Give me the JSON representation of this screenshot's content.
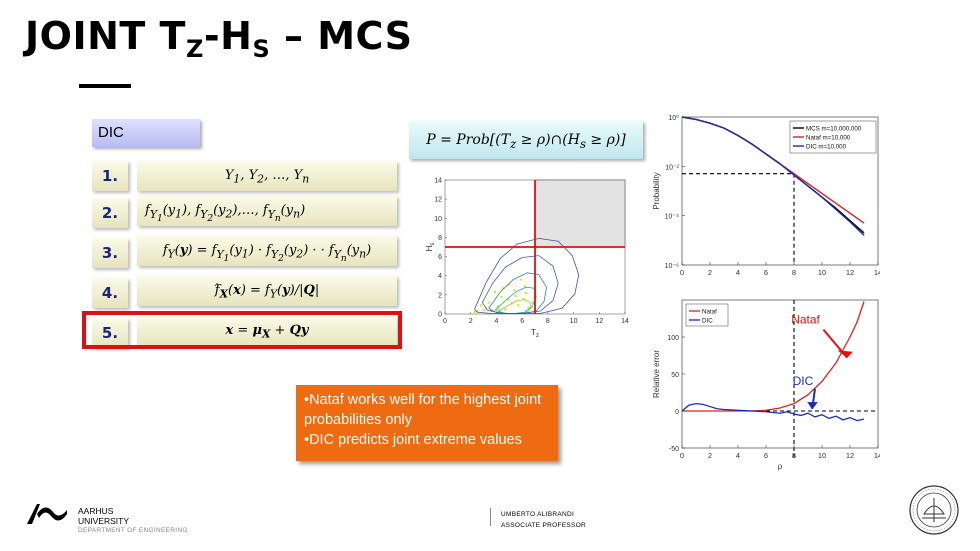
{
  "title": {
    "main": "JOINT T",
    "sub1": "Z",
    "mid": "-H",
    "sub2": "S",
    "tail": " – MCS"
  },
  "dic_label": "DIC",
  "steps": [
    {
      "number": "1.",
      "equation": "Y₁, Y₂, …, Yₙ"
    },
    {
      "number": "2.",
      "equation": "f_{Y₁}(y₁), f_{Y₂}(y₂),…, f_{Yₙ}(yₙ)"
    },
    {
      "number": "3.",
      "equation": "f_Y(𝒚) = f_{Y₁}(y₁) · f_{Y₂}(y₂) · · f_{Yₙ}(yₙ)"
    },
    {
      "number": "4.",
      "equation": "f̂_X(𝒙) = f_Y(𝒚)/|𝑸|"
    },
    {
      "number": "5.",
      "equation": "𝒙 = 𝝁_X + 𝑸𝒚"
    }
  ],
  "probability_formula": "P = Prob[(T_z ≥ ρ)∩(H_s ≥ ρ)]",
  "note": {
    "line1": "•Nataf works well for the highest joint probabilities only",
    "line2": "•DIC predicts joint extreme values"
  },
  "footer": {
    "university_line1": "AARHUS",
    "university_line2": "UNIVERSITY",
    "department": "DEPARTMENT OF ENGINEERING",
    "name": "UMBERTO ALIBRANDI",
    "position": "ASSOCIATE PROFESSOR"
  },
  "colors": {
    "accent_red": "#e01010",
    "note_orange": "#ef6b12",
    "mcs": "#000000",
    "nataf": "#e02020",
    "dic": "#1a2fb0"
  },
  "chart_data": [
    {
      "type": "line",
      "title": "",
      "xlabel": "T_z",
      "ylabel": "H_s",
      "xlim": [
        0,
        14
      ],
      "ylim": [
        0,
        14
      ],
      "xticks": [
        0,
        2,
        4,
        6,
        8,
        10,
        12,
        14
      ],
      "yticks": [
        0,
        2,
        4,
        6,
        8,
        10,
        12,
        14
      ],
      "xtick_labels": [
        "0",
        "2",
        "4",
        "6",
        "8",
        "10",
        "12",
        "14"
      ],
      "ytick_labels": [
        "0",
        "2",
        "4",
        "6",
        "8",
        "10",
        "12",
        "14"
      ],
      "threshold": 7,
      "shaded_region": {
        "x": [
          7,
          14
        ],
        "y": [
          7,
          14
        ]
      },
      "series": [
        {
          "kind": "scatter",
          "color": "#e8e600",
          "x": [
            2.3,
            3,
            3.6,
            4.1,
            4.7,
            5.2,
            5.7,
            6.1,
            6.5,
            3.4,
            4.4,
            5.4,
            6.3,
            5,
            2.8,
            4.9,
            3.9,
            5.9,
            4.5,
            6.8,
            3.2,
            5.5,
            6.2,
            4.2,
            2.5
          ],
          "y": [
            0.2,
            0.4,
            0.3,
            0.8,
            0.5,
            1.1,
            0.9,
            1.6,
            0.7,
            1.2,
            1.8,
            2.5,
            2.2,
            3.1,
            0.9,
            1.5,
            2.3,
            3.6,
            2.7,
            1.2,
            0.6,
            1.9,
            2.9,
            0.5,
            0.3
          ]
        },
        {
          "kind": "contour",
          "color": "#9bd23a",
          "x": [
            4.2,
            4.9,
            5.6,
            6.2,
            6.6,
            6.7,
            6.5,
            6.2,
            5.8,
            5.2,
            4.6,
            4.2
          ],
          "y": [
            0.3,
            0.9,
            1.4,
            1.5,
            1.2,
            0.7,
            0.3,
            0.1,
            0.05,
            0.05,
            0.1,
            0.3
          ]
        },
        {
          "kind": "contour",
          "color": "#20b2aa",
          "x": [
            3.9,
            4.7,
            5.5,
            6.3,
            6.9,
            7.1,
            6.8,
            6.2,
            5.4,
            4.6,
            3.9
          ],
          "y": [
            0.4,
            1.4,
            2.3,
            2.8,
            2.7,
            1.8,
            0.8,
            0.2,
            0.05,
            0.05,
            0.4
          ]
        },
        {
          "kind": "contour",
          "color": "#2a80c8",
          "x": [
            3.4,
            4.3,
            5.3,
            6.4,
            7.3,
            7.9,
            7.7,
            7.1,
            6.1,
            4.9,
            3.9,
            3.4
          ],
          "y": [
            0.6,
            2.3,
            3.6,
            4.3,
            4.1,
            2.8,
            1.3,
            0.3,
            0.05,
            0.05,
            0.2,
            0.6
          ]
        },
        {
          "kind": "contour",
          "color": "#3a5fb8",
          "x": [
            2.9,
            3.7,
            4.7,
            6,
            7.3,
            8.4,
            8.8,
            8.4,
            7.4,
            5.9,
            4.4,
            3.3,
            2.9
          ],
          "y": [
            1.2,
            3.2,
            4.9,
            5.9,
            6.1,
            5,
            3.2,
            1.4,
            0.3,
            0.05,
            0.05,
            0.4,
            1.2
          ]
        },
        {
          "kind": "contour",
          "color": "#444ea0",
          "x": [
            2.3,
            3.2,
            4.3,
            5.6,
            7.3,
            8.8,
            9.9,
            10.4,
            10.1,
            9.1,
            7.4,
            5.4,
            3.6,
            2.5,
            2.3
          ],
          "y": [
            0.5,
            3.3,
            5.8,
            7.3,
            7.9,
            7.6,
            6.1,
            4.1,
            2.1,
            0.6,
            0.05,
            0.05,
            0.05,
            0.2,
            0.5
          ]
        }
      ]
    },
    {
      "type": "line",
      "title": "",
      "xlabel": "ρ",
      "ylabel": "Probability",
      "yscale": "log",
      "xlim": [
        0,
        14
      ],
      "ylim": [
        -6,
        0
      ],
      "xticks": [
        0,
        2,
        4,
        6,
        8,
        10,
        12,
        14
      ],
      "xtick_labels": [
        "0",
        "2",
        "4",
        "6",
        "8",
        "10",
        "12",
        "14"
      ],
      "ytick_labels": [
        "10⁰",
        "10⁻²",
        "10⁻⁴",
        "10⁻⁶"
      ],
      "legend": "top-right",
      "grid": false,
      "marker": {
        "x": 8,
        "log10_y": -2.3
      },
      "series": [
        {
          "name": "MCS m=10,000,000",
          "color": "#000000",
          "x": [
            0,
            1,
            2,
            3,
            4,
            5,
            6,
            7,
            8,
            9,
            10,
            11,
            12,
            13
          ],
          "log10_y": [
            0,
            -0.1,
            -0.25,
            -0.45,
            -0.75,
            -1.1,
            -1.5,
            -1.9,
            -2.35,
            -2.8,
            -3.25,
            -3.7,
            -4.2,
            -4.7
          ]
        },
        {
          "name": "Nataf m=10,000",
          "color": "#e02020",
          "x": [
            0,
            1,
            2,
            3,
            4,
            5,
            6,
            7,
            8,
            9,
            10,
            11,
            12,
            13
          ],
          "log10_y": [
            0,
            -0.1,
            -0.25,
            -0.45,
            -0.75,
            -1.1,
            -1.5,
            -1.9,
            -2.3,
            -2.7,
            -3.1,
            -3.5,
            -3.9,
            -4.3
          ]
        },
        {
          "name": "DIC m=10,000",
          "color": "#1a2fb0",
          "x": [
            0,
            1,
            2,
            3,
            4,
            5,
            6,
            7,
            8,
            9,
            10,
            11,
            12,
            13
          ],
          "log10_y": [
            0,
            -0.1,
            -0.25,
            -0.45,
            -0.75,
            -1.1,
            -1.5,
            -1.9,
            -2.35,
            -2.8,
            -3.25,
            -3.75,
            -4.25,
            -4.8
          ]
        }
      ]
    },
    {
      "type": "line",
      "title": "",
      "xlabel": "ρ",
      "ylabel": "Relative error",
      "xlim": [
        0,
        14
      ],
      "ylim": [
        -50,
        150
      ],
      "xticks": [
        0,
        2,
        4,
        6,
        8,
        10,
        12,
        14
      ],
      "yticks": [
        -50,
        0,
        50,
        100
      ],
      "xtick_labels": [
        "0",
        "2",
        "4",
        "6",
        "8",
        "10",
        "12",
        "14"
      ],
      "ytick_labels": [
        "-50",
        "0",
        "50",
        "100"
      ],
      "legend": "top-left",
      "marker": {
        "x": 8,
        "y": 0
      },
      "annotations": [
        "Nataf",
        "DIC"
      ],
      "series": [
        {
          "name": "Nataf",
          "color": "#e02020",
          "x": [
            0,
            1,
            2,
            3,
            4,
            5,
            6,
            7,
            8,
            9,
            10,
            11,
            12,
            12.5,
            13
          ],
          "y": [
            0,
            0,
            0,
            0,
            0,
            0,
            1,
            4,
            10,
            22,
            40,
            65,
            100,
            120,
            148
          ]
        },
        {
          "name": "DIC",
          "color": "#1a2fb0",
          "x": [
            0,
            0.5,
            1,
            1.5,
            2,
            2.5,
            3,
            4,
            5,
            6,
            7,
            7.5,
            8,
            8.5,
            9,
            9.5,
            10,
            10.5,
            11,
            11.5,
            12,
            12.5,
            13
          ],
          "y": [
            0,
            8,
            10,
            9,
            6,
            3,
            2,
            1,
            0,
            -1,
            -3,
            -1,
            -4,
            -6,
            -3,
            -8,
            -5,
            -10,
            -7,
            -12,
            -9,
            -13,
            -11
          ]
        }
      ]
    }
  ]
}
